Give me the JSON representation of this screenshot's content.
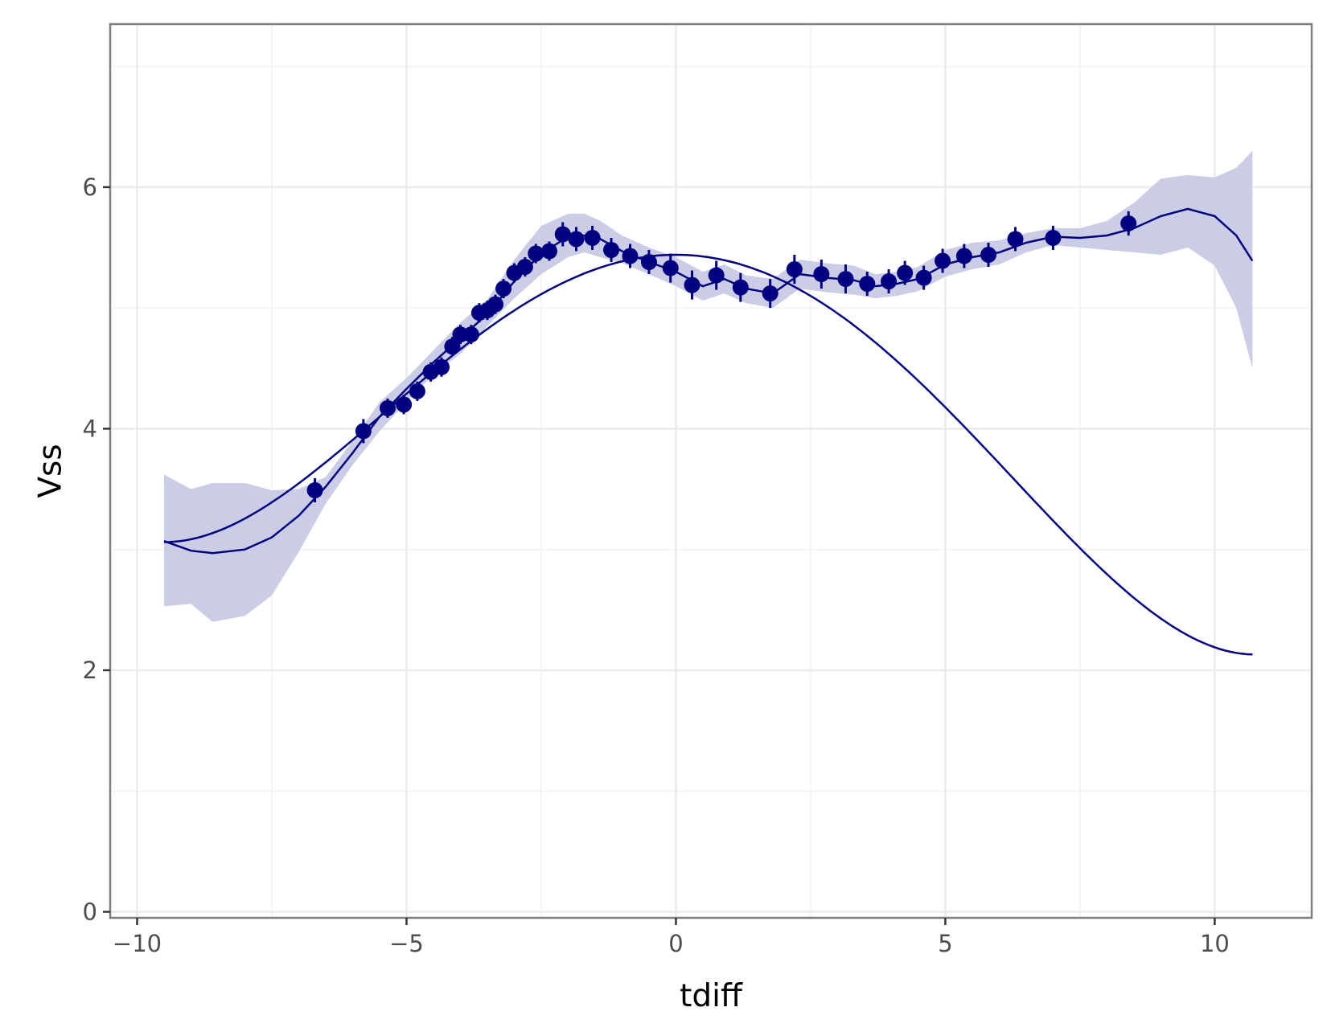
{
  "chart_data": {
    "type": "scatter",
    "xlabel": "tdiff",
    "ylabel": "Vss",
    "xlim": [
      -10.5,
      11.8
    ],
    "ylim": [
      -0.05,
      7.35
    ],
    "x_ticks": [
      -10,
      -5,
      0,
      5,
      10
    ],
    "x_tick_labels": [
      "−10",
      "−5",
      "0",
      "5",
      "10"
    ],
    "y_ticks": [
      0,
      2,
      4,
      6
    ],
    "y_tick_labels": [
      "0",
      "2",
      "4",
      "6"
    ],
    "grid": true,
    "color": "#000080",
    "band_color": "#cbcce5",
    "points": [
      {
        "x": -6.7,
        "y": 3.49,
        "err": 0.1
      },
      {
        "x": -5.8,
        "y": 3.98,
        "err": 0.1
      },
      {
        "x": -5.35,
        "y": 4.17,
        "err": 0.08
      },
      {
        "x": -5.05,
        "y": 4.2,
        "err": 0.08
      },
      {
        "x": -4.8,
        "y": 4.31,
        "err": 0.08
      },
      {
        "x": -4.55,
        "y": 4.47,
        "err": 0.08
      },
      {
        "x": -4.35,
        "y": 4.51,
        "err": 0.08
      },
      {
        "x": -4.15,
        "y": 4.68,
        "err": 0.08
      },
      {
        "x": -4.0,
        "y": 4.78,
        "err": 0.08
      },
      {
        "x": -3.8,
        "y": 4.78,
        "err": 0.08
      },
      {
        "x": -3.65,
        "y": 4.96,
        "err": 0.08
      },
      {
        "x": -3.5,
        "y": 4.98,
        "err": 0.08
      },
      {
        "x": -3.35,
        "y": 5.03,
        "err": 0.08
      },
      {
        "x": -3.2,
        "y": 5.16,
        "err": 0.08
      },
      {
        "x": -3.0,
        "y": 5.29,
        "err": 0.08
      },
      {
        "x": -2.8,
        "y": 5.34,
        "err": 0.08
      },
      {
        "x": -2.6,
        "y": 5.45,
        "err": 0.08
      },
      {
        "x": -2.35,
        "y": 5.47,
        "err": 0.08
      },
      {
        "x": -2.1,
        "y": 5.61,
        "err": 0.1
      },
      {
        "x": -1.85,
        "y": 5.57,
        "err": 0.1
      },
      {
        "x": -1.55,
        "y": 5.58,
        "err": 0.1
      },
      {
        "x": -1.2,
        "y": 5.48,
        "err": 0.1
      },
      {
        "x": -0.85,
        "y": 5.43,
        "err": 0.1
      },
      {
        "x": -0.5,
        "y": 5.38,
        "err": 0.1
      },
      {
        "x": -0.1,
        "y": 5.33,
        "err": 0.12
      },
      {
        "x": 0.3,
        "y": 5.19,
        "err": 0.12
      },
      {
        "x": 0.75,
        "y": 5.27,
        "err": 0.12
      },
      {
        "x": 1.2,
        "y": 5.17,
        "err": 0.12
      },
      {
        "x": 1.75,
        "y": 5.12,
        "err": 0.12
      },
      {
        "x": 2.2,
        "y": 5.32,
        "err": 0.12
      },
      {
        "x": 2.7,
        "y": 5.28,
        "err": 0.12
      },
      {
        "x": 3.15,
        "y": 5.24,
        "err": 0.12
      },
      {
        "x": 3.55,
        "y": 5.2,
        "err": 0.1
      },
      {
        "x": 3.95,
        "y": 5.22,
        "err": 0.1
      },
      {
        "x": 4.25,
        "y": 5.29,
        "err": 0.1
      },
      {
        "x": 4.6,
        "y": 5.25,
        "err": 0.1
      },
      {
        "x": 4.95,
        "y": 5.39,
        "err": 0.1
      },
      {
        "x": 5.35,
        "y": 5.43,
        "err": 0.1
      },
      {
        "x": 5.8,
        "y": 5.44,
        "err": 0.1
      },
      {
        "x": 6.3,
        "y": 5.57,
        "err": 0.1
      },
      {
        "x": 7.0,
        "y": 5.58,
        "err": 0.1
      },
      {
        "x": 8.4,
        "y": 5.7,
        "err": 0.1
      }
    ],
    "loess_line": {
      "x": [
        -9.5,
        -9.0,
        -8.6,
        -8.0,
        -7.5,
        -7.0,
        -6.5,
        -6.0,
        -5.5,
        -5.0,
        -4.5,
        -4.0,
        -3.5,
        -3.0,
        -2.5,
        -2.0,
        -1.7,
        -1.4,
        -1.0,
        -0.5,
        0.0,
        0.5,
        0.9,
        1.3,
        1.8,
        2.3,
        2.8,
        3.3,
        3.7,
        4.1,
        4.5,
        5.0,
        5.5,
        6.0,
        6.5,
        7.0,
        7.5,
        8.0,
        8.5,
        9.0,
        9.5,
        10.0,
        10.4,
        10.7
      ],
      "y": [
        3.07,
        2.99,
        2.97,
        3.0,
        3.1,
        3.28,
        3.52,
        3.8,
        4.1,
        4.33,
        4.55,
        4.75,
        4.95,
        5.22,
        5.45,
        5.59,
        5.6,
        5.57,
        5.47,
        5.38,
        5.3,
        5.18,
        5.24,
        5.16,
        5.12,
        5.28,
        5.25,
        5.23,
        5.18,
        5.2,
        5.24,
        5.36,
        5.42,
        5.46,
        5.54,
        5.59,
        5.58,
        5.6,
        5.66,
        5.76,
        5.82,
        5.76,
        5.6,
        5.39
      ]
    },
    "band_upper": [
      3.62,
      3.5,
      3.55,
      3.55,
      3.49,
      3.5,
      3.6,
      3.9,
      4.22,
      4.42,
      4.65,
      4.88,
      5.07,
      5.4,
      5.68,
      5.78,
      5.78,
      5.72,
      5.6,
      5.5,
      5.42,
      5.3,
      5.36,
      5.27,
      5.24,
      5.4,
      5.37,
      5.35,
      5.28,
      5.3,
      5.34,
      5.48,
      5.54,
      5.56,
      5.62,
      5.66,
      5.66,
      5.72,
      5.87,
      6.07,
      6.1,
      6.08,
      6.16,
      6.3
    ],
    "band_lower": [
      2.53,
      2.55,
      2.4,
      2.45,
      2.62,
      2.98,
      3.38,
      3.7,
      3.98,
      4.22,
      4.45,
      4.62,
      4.85,
      5.08,
      5.28,
      5.42,
      5.46,
      5.42,
      5.37,
      5.28,
      5.18,
      5.06,
      5.12,
      5.04,
      5.0,
      5.16,
      5.13,
      5.11,
      5.08,
      5.1,
      5.14,
      5.26,
      5.32,
      5.36,
      5.46,
      5.52,
      5.5,
      5.48,
      5.46,
      5.44,
      5.5,
      5.35,
      5.0,
      4.5
    ],
    "poly_line": {
      "coefficients": [
        5.44,
        -0.0,
        -0.055,
        -0.00045,
        0.00027
      ],
      "x_range": [
        -9.5,
        10.7
      ]
    }
  }
}
